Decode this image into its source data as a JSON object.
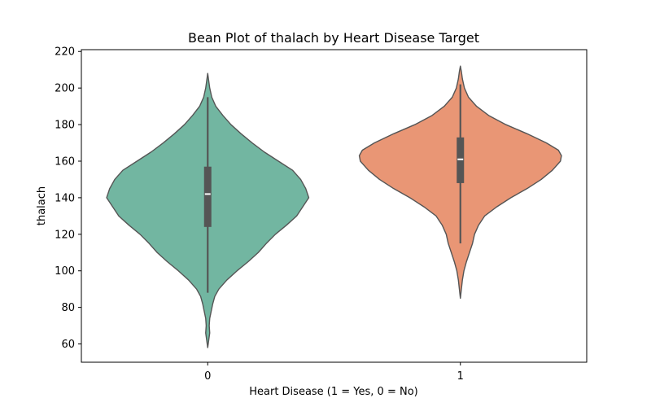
{
  "chart_data": {
    "type": "violin",
    "title": "Bean Plot of thalach by Heart Disease Target",
    "xlabel": "Heart Disease (1 = Yes, 0 = No)",
    "ylabel": "thalach",
    "ylim": [
      50,
      221
    ],
    "yticks": [
      60,
      80,
      100,
      120,
      140,
      160,
      180,
      200,
      220
    ],
    "categories": [
      "0",
      "1"
    ],
    "grid": false,
    "series": [
      {
        "category": "0",
        "color": "#72b6a1",
        "min": 88,
        "q1": 124,
        "median": 142,
        "q3": 157,
        "max": 195,
        "density": [
          [
            58,
            0.0
          ],
          [
            62,
            0.01
          ],
          [
            66,
            0.02
          ],
          [
            70,
            0.015
          ],
          [
            74,
            0.02
          ],
          [
            78,
            0.035
          ],
          [
            82,
            0.05
          ],
          [
            86,
            0.07
          ],
          [
            90,
            0.11
          ],
          [
            95,
            0.19
          ],
          [
            100,
            0.29
          ],
          [
            105,
            0.4
          ],
          [
            110,
            0.5
          ],
          [
            115,
            0.58
          ],
          [
            120,
            0.67
          ],
          [
            125,
            0.78
          ],
          [
            130,
            0.88
          ],
          [
            135,
            0.94
          ],
          [
            140,
            1.0
          ],
          [
            145,
            0.97
          ],
          [
            150,
            0.92
          ],
          [
            155,
            0.84
          ],
          [
            160,
            0.7
          ],
          [
            165,
            0.56
          ],
          [
            170,
            0.44
          ],
          [
            175,
            0.33
          ],
          [
            180,
            0.23
          ],
          [
            185,
            0.15
          ],
          [
            190,
            0.08
          ],
          [
            195,
            0.04
          ],
          [
            200,
            0.02
          ],
          [
            204,
            0.01
          ],
          [
            208,
            0.0
          ]
        ]
      },
      {
        "category": "1",
        "color": "#e99675",
        "min": 115,
        "q1": 148,
        "median": 161,
        "q3": 173,
        "max": 202,
        "density": [
          [
            85,
            0.0
          ],
          [
            90,
            0.01
          ],
          [
            95,
            0.02
          ],
          [
            100,
            0.035
          ],
          [
            105,
            0.06
          ],
          [
            110,
            0.09
          ],
          [
            115,
            0.12
          ],
          [
            120,
            0.14
          ],
          [
            125,
            0.18
          ],
          [
            130,
            0.24
          ],
          [
            135,
            0.36
          ],
          [
            140,
            0.5
          ],
          [
            145,
            0.66
          ],
          [
            150,
            0.8
          ],
          [
            155,
            0.91
          ],
          [
            160,
            0.99
          ],
          [
            163,
            1.0
          ],
          [
            166,
            0.97
          ],
          [
            170,
            0.85
          ],
          [
            175,
            0.66
          ],
          [
            180,
            0.45
          ],
          [
            185,
            0.28
          ],
          [
            190,
            0.16
          ],
          [
            195,
            0.08
          ],
          [
            200,
            0.04
          ],
          [
            205,
            0.02
          ],
          [
            209,
            0.01
          ],
          [
            212,
            0.0
          ]
        ]
      }
    ]
  }
}
